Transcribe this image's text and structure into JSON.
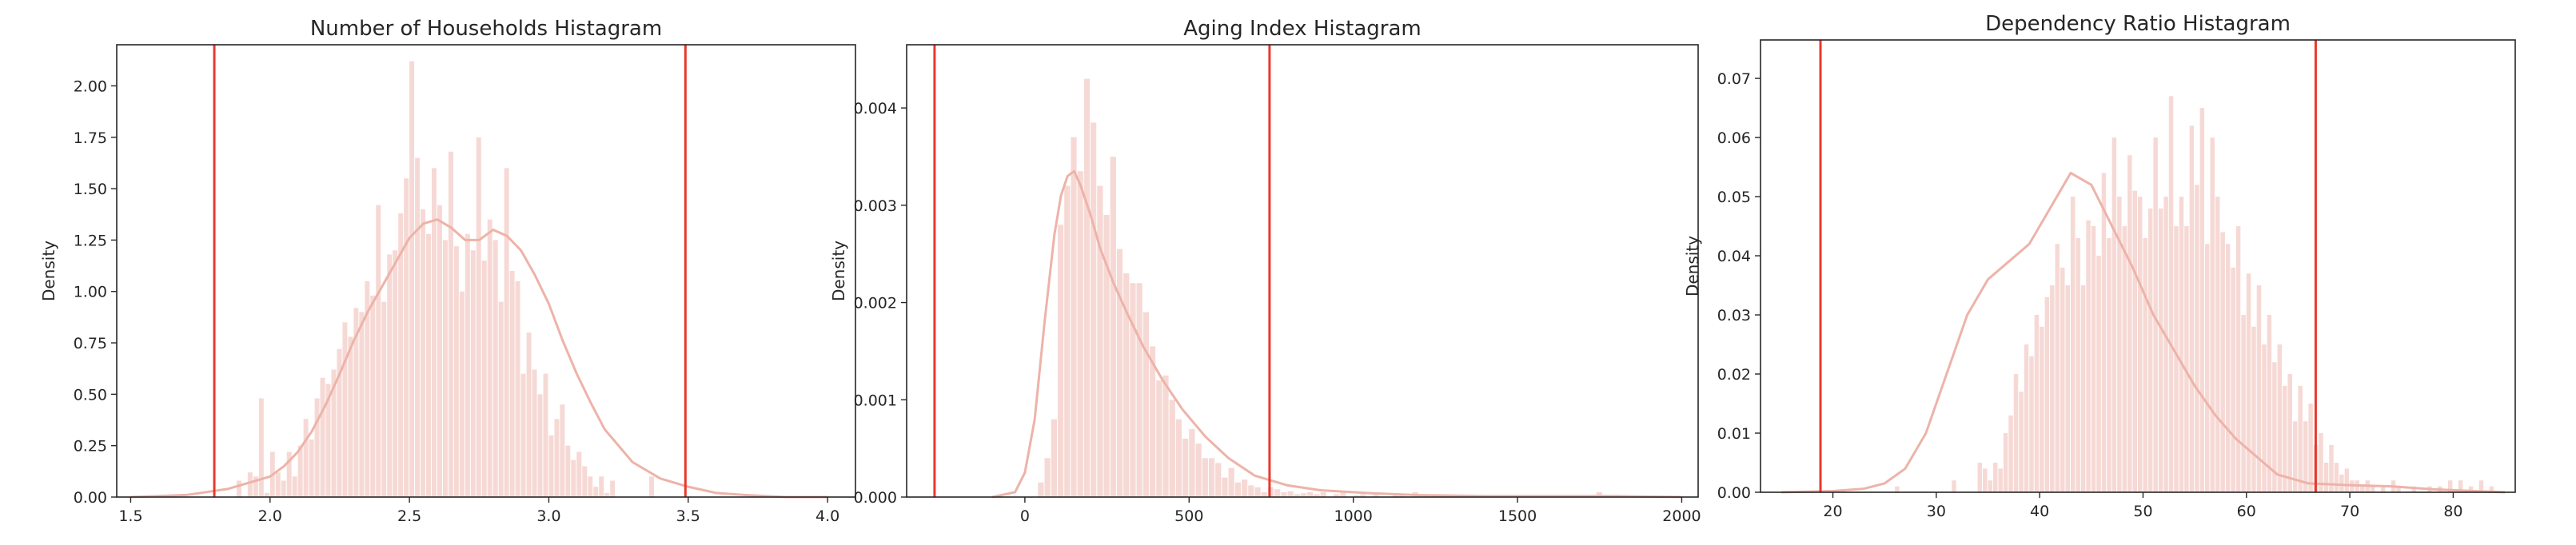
{
  "chart_data": [
    {
      "type": "histogram",
      "title": "Number of Households Histagram",
      "xlabel": "",
      "ylabel": "Density",
      "xlim": [
        1.45,
        4.1
      ],
      "ylim": [
        0,
        2.2
      ],
      "xticks": [
        1.5,
        2.0,
        2.5,
        3.0,
        3.5,
        4.0
      ],
      "xtick_labels": [
        "1.5",
        "2.0",
        "2.5",
        "3.0",
        "3.5",
        "4.0"
      ],
      "yticks": [
        0.0,
        0.25,
        0.5,
        0.75,
        1.0,
        1.25,
        1.5,
        1.75,
        2.0
      ],
      "ytick_labels": [
        "0.00",
        "0.25",
        "0.50",
        "0.75",
        "1.00",
        "1.25",
        "1.50",
        "1.75",
        "2.00"
      ],
      "vlines": [
        1.8,
        3.49
      ],
      "vline_color": "#e8392b",
      "bar_color": "#f6d9d5",
      "kde_color": "#edb3a9",
      "bins": {
        "x_start": 1.52,
        "width": 0.02,
        "counts": [
          0.0,
          0.0,
          0.0,
          0.0,
          0.0,
          0.0,
          0.0,
          0.0,
          0.0,
          0.0,
          0.0,
          0.0,
          0.0,
          0.0,
          0.0,
          0.0,
          0.0,
          0.0,
          0.08,
          0.0,
          0.12,
          0.1,
          0.48,
          0.02,
          0.22,
          0.12,
          0.08,
          0.22,
          0.1,
          0.25,
          0.38,
          0.28,
          0.48,
          0.58,
          0.55,
          0.62,
          0.72,
          0.85,
          0.78,
          0.92,
          0.9,
          1.05,
          0.98,
          1.42,
          0.95,
          1.18,
          1.2,
          1.38,
          1.55,
          2.12,
          1.65,
          1.4,
          1.28,
          1.6,
          1.42,
          1.25,
          1.68,
          1.22,
          1.0,
          1.28,
          1.2,
          1.75,
          1.15,
          1.35,
          1.25,
          0.95,
          1.6,
          1.1,
          1.05,
          0.6,
          0.8,
          0.62,
          0.5,
          0.6,
          0.3,
          0.38,
          0.45,
          0.25,
          0.18,
          0.22,
          0.15,
          0.1,
          0.05,
          0.1,
          0.02,
          0.08,
          0.0,
          0.0,
          0.0,
          0.0,
          0.0,
          0.0,
          0.1,
          0.0,
          0.0,
          0.0,
          0.0,
          0.0,
          0.0,
          0.0,
          0.0,
          0.0,
          0.0,
          0.0,
          0.0,
          0.0,
          0.0,
          0.0,
          0.0,
          0.0,
          0.0,
          0.0,
          0.0,
          0.0,
          0.0,
          0.0,
          0.0,
          0.0,
          0.0,
          0.0,
          0.0,
          0.0,
          0.0,
          0.0,
          0.0,
          0.0,
          0.0,
          0.0,
          0.0,
          0.0,
          0.0,
          0.0
        ]
      },
      "kde": {
        "x": [
          1.5,
          1.7,
          1.85,
          2.0,
          2.05,
          2.1,
          2.15,
          2.2,
          2.25,
          2.3,
          2.35,
          2.4,
          2.45,
          2.5,
          2.55,
          2.6,
          2.65,
          2.7,
          2.75,
          2.8,
          2.85,
          2.9,
          2.95,
          3.0,
          3.05,
          3.1,
          3.15,
          3.2,
          3.3,
          3.4,
          3.5,
          3.6,
          3.7,
          3.85,
          4.0
        ],
        "y": [
          0.0,
          0.01,
          0.04,
          0.1,
          0.15,
          0.22,
          0.32,
          0.45,
          0.6,
          0.76,
          0.9,
          1.02,
          1.14,
          1.26,
          1.33,
          1.35,
          1.31,
          1.25,
          1.25,
          1.3,
          1.27,
          1.2,
          1.08,
          0.94,
          0.76,
          0.6,
          0.46,
          0.33,
          0.17,
          0.09,
          0.05,
          0.02,
          0.01,
          0.0,
          0.0
        ]
      }
    },
    {
      "type": "histogram",
      "title": "Aging Index Histagram",
      "xlabel": "",
      "ylabel": "Density",
      "xlim": [
        -360,
        2050
      ],
      "ylim": [
        0,
        0.00465
      ],
      "xticks": [
        0,
        500,
        1000,
        1500,
        2000
      ],
      "xtick_labels": [
        "0",
        "500",
        "1000",
        "1500",
        "2000"
      ],
      "yticks": [
        0.0,
        0.001,
        0.002,
        0.003,
        0.004
      ],
      "ytick_labels": [
        "0.000",
        "0.001",
        "0.002",
        "0.003",
        "0.004"
      ],
      "vlines": [
        -275,
        745
      ],
      "vline_color": "#e8392b",
      "bar_color": "#f6d9d5",
      "kde_color": "#edb3a9",
      "bins": {
        "x_start": 20,
        "width": 20,
        "counts": [
          0.0,
          0.00015,
          0.0004,
          0.0008,
          0.0028,
          0.0032,
          0.0037,
          0.00335,
          0.0043,
          0.00385,
          0.0032,
          0.0029,
          0.0035,
          0.00255,
          0.0023,
          0.0022,
          0.0022,
          0.0019,
          0.00155,
          0.0012,
          0.00125,
          0.001,
          0.0008,
          0.0006,
          0.0007,
          0.00055,
          0.0004,
          0.0004,
          0.00035,
          0.0002,
          0.0003,
          0.00015,
          0.00018,
          0.00012,
          0.0001,
          5e-05,
          0.0001,
          8e-05,
          5e-05,
          6e-05,
          3e-05,
          4e-05,
          5e-05,
          3e-05,
          5e-05,
          0.0,
          3e-05,
          5e-05,
          0.0,
          2e-05,
          3e-05,
          0.0,
          3e-05,
          0.0,
          0.0,
          4e-05,
          3e-05,
          0.0,
          5e-05,
          0.0,
          0.0,
          0.0,
          0.0,
          2e-05,
          0.0,
          0.0,
          0.0,
          0.0,
          0.0,
          0.0,
          0.0,
          0.0,
          0.0,
          0.0,
          0.0,
          0.0,
          0.0,
          0.0,
          0.0,
          0.0,
          0.0,
          0.0,
          0.0,
          0.0,
          0.0,
          0.0,
          5e-05,
          0.0,
          0.0,
          0.0,
          0.0,
          0.0,
          0.0,
          0.0,
          0.0,
          0.0,
          0.0
        ]
      },
      "kde": {
        "x": [
          -100,
          -30,
          0,
          30,
          60,
          90,
          110,
          130,
          150,
          170,
          200,
          230,
          270,
          310,
          360,
          420,
          480,
          550,
          620,
          700,
          800,
          900,
          1050,
          1200,
          1400,
          1600,
          1800,
          2000
        ],
        "y": [
          0.0,
          5e-05,
          0.00025,
          0.0008,
          0.0018,
          0.0027,
          0.0031,
          0.0033,
          0.00335,
          0.0032,
          0.0029,
          0.00255,
          0.0022,
          0.0019,
          0.00155,
          0.0012,
          0.0009,
          0.00062,
          0.0004,
          0.00022,
          0.00012,
          7e-05,
          4e-05,
          2e-05,
          1e-05,
          1e-05,
          1e-05,
          0.0
        ]
      }
    },
    {
      "type": "histogram",
      "title": "Dependency Ratio Histagram",
      "xlabel": "",
      "ylabel": "Density",
      "xlim": [
        13,
        86
      ],
      "ylim": [
        0,
        0.0765
      ],
      "xticks": [
        20,
        30,
        40,
        50,
        60,
        70,
        80
      ],
      "xtick_labels": [
        "20",
        "30",
        "40",
        "50",
        "60",
        "70",
        "80"
      ],
      "yticks": [
        0.0,
        0.01,
        0.02,
        0.03,
        0.04,
        0.05,
        0.06,
        0.07
      ],
      "ytick_labels": [
        "0.00",
        "0.01",
        "0.02",
        "0.03",
        "0.04",
        "0.05",
        "0.06",
        "0.07"
      ],
      "vlines": [
        18.8,
        66.7
      ],
      "vline_color": "#e8392b",
      "bar_color": "#f6d9d5",
      "kde_color": "#edb3a9",
      "bins": {
        "x_start": 20,
        "width": 0.5,
        "counts": [
          0.0,
          0.0,
          0.0,
          0.0,
          0.0,
          0.0,
          0.0,
          0.0,
          0.0,
          0.0,
          0.0,
          0.0,
          0.001,
          0.0,
          0.0,
          0.0,
          0.0,
          0.0,
          0.0,
          0.0,
          0.0,
          0.0,
          0.0,
          0.002,
          0.0,
          0.0,
          0.0,
          0.0,
          0.005,
          0.004,
          0.002,
          0.005,
          0.004,
          0.01,
          0.013,
          0.02,
          0.017,
          0.025,
          0.023,
          0.03,
          0.028,
          0.033,
          0.035,
          0.042,
          0.038,
          0.035,
          0.05,
          0.043,
          0.035,
          0.046,
          0.045,
          0.04,
          0.054,
          0.043,
          0.06,
          0.05,
          0.045,
          0.057,
          0.051,
          0.05,
          0.043,
          0.048,
          0.06,
          0.048,
          0.05,
          0.067,
          0.045,
          0.05,
          0.045,
          0.062,
          0.052,
          0.065,
          0.042,
          0.06,
          0.05,
          0.044,
          0.042,
          0.038,
          0.045,
          0.03,
          0.037,
          0.028,
          0.035,
          0.025,
          0.03,
          0.022,
          0.025,
          0.018,
          0.02,
          0.012,
          0.018,
          0.012,
          0.015,
          0.008,
          0.01,
          0.005,
          0.008,
          0.005,
          0.003,
          0.004,
          0.002,
          0.002,
          0.001,
          0.002,
          0.001,
          0.0,
          0.001,
          0.0,
          0.002,
          0.001,
          0.0,
          0.0,
          0.001,
          0.0,
          0.0,
          0.001,
          0.0,
          0.001,
          0.0,
          0.002,
          0.0,
          0.002,
          0.0,
          0.001,
          0.0,
          0.002,
          0.0,
          0.001,
          0.0,
          0.0,
          0.0
        ]
      },
      "kde": {
        "x": [
          15,
          20,
          23,
          25,
          27,
          29,
          31,
          33,
          35,
          37,
          39,
          41,
          43,
          45,
          47,
          49,
          51,
          53,
          55,
          57,
          59,
          61,
          63,
          66,
          70,
          74,
          78,
          82,
          85
        ],
        "y": [
          0.0,
          0.0002,
          0.0006,
          0.0015,
          0.004,
          0.01,
          0.02,
          0.03,
          0.036,
          0.039,
          0.042,
          0.048,
          0.054,
          0.052,
          0.045,
          0.038,
          0.03,
          0.024,
          0.018,
          0.013,
          0.009,
          0.006,
          0.003,
          0.0015,
          0.0012,
          0.001,
          0.0005,
          0.0002,
          0.0
        ]
      }
    }
  ]
}
